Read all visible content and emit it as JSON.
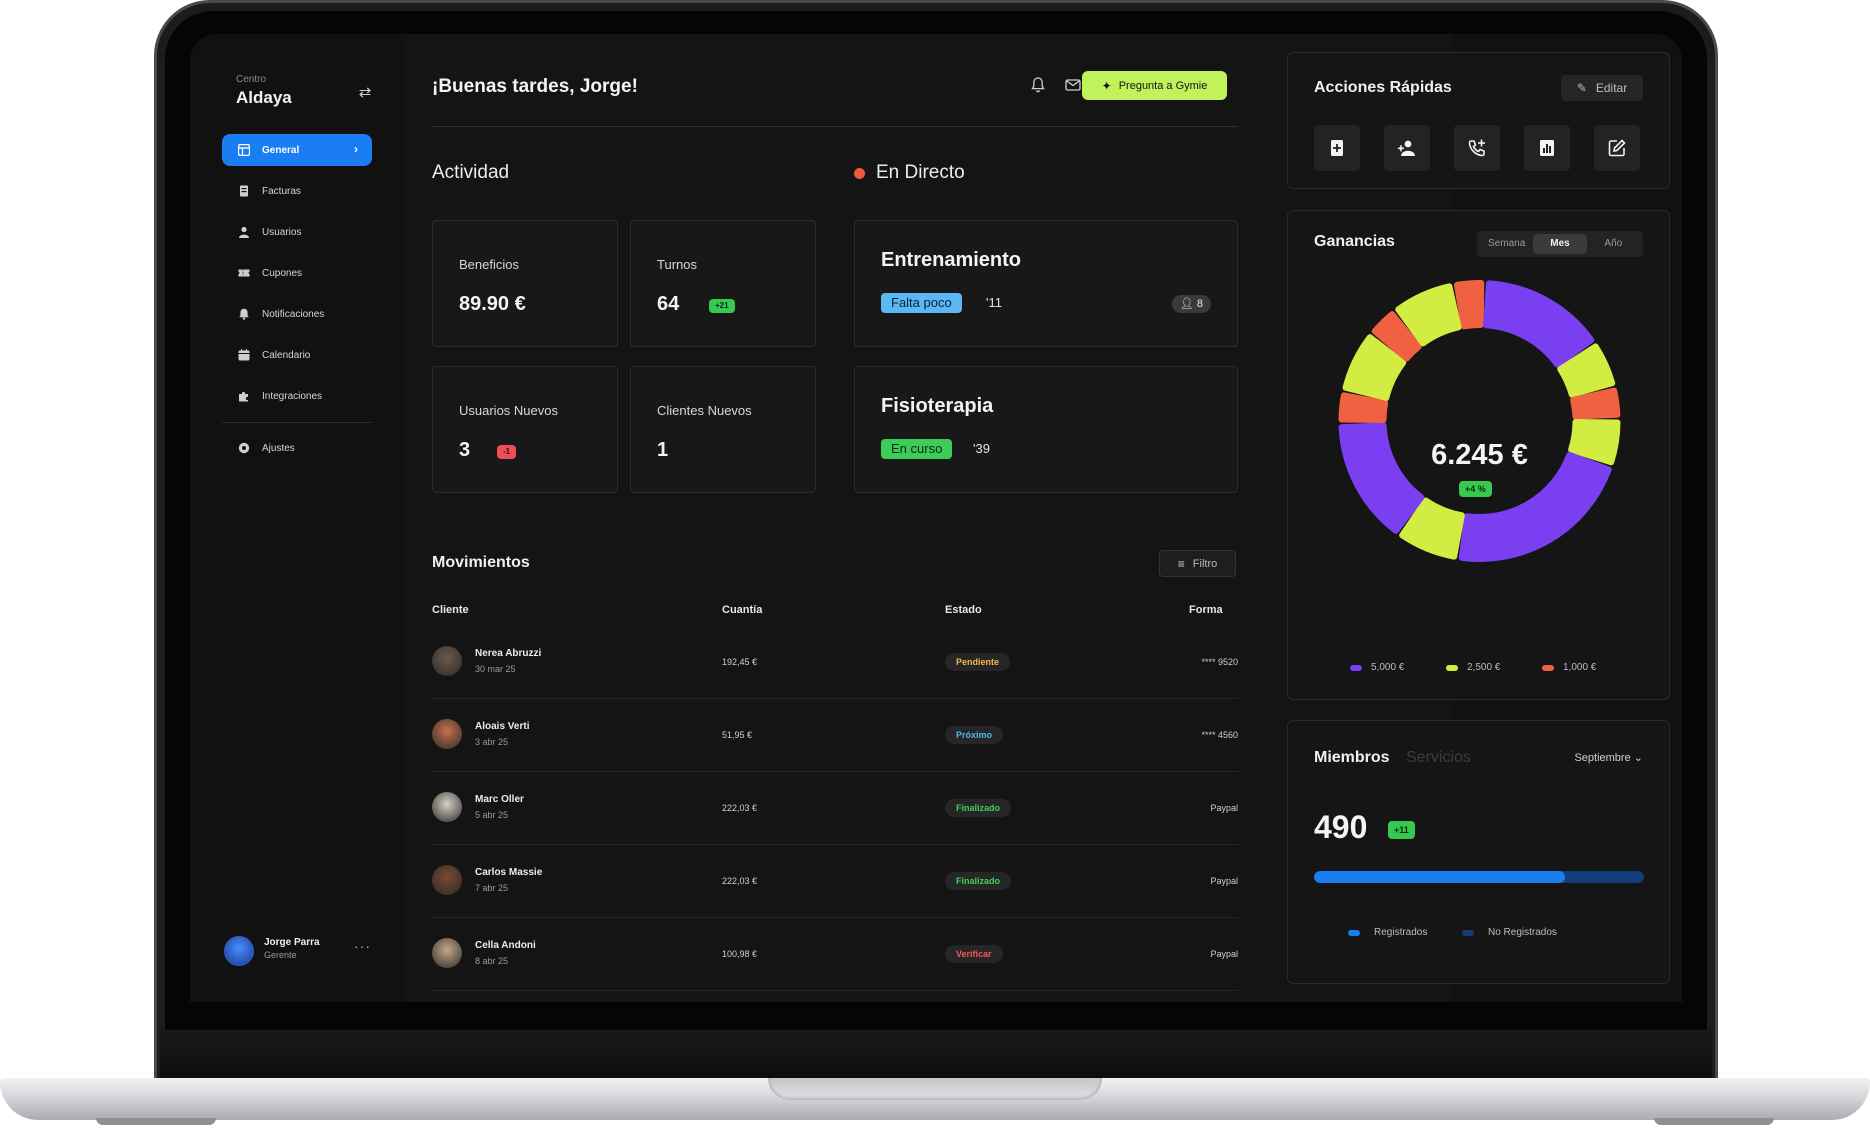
{
  "sidebar": {
    "centro_label": "Centro",
    "centro_name": "Aldaya",
    "items": [
      {
        "label": "General",
        "icon": "layout-icon",
        "active": true
      },
      {
        "label": "Facturas",
        "icon": "receipt-icon"
      },
      {
        "label": "Usuarios",
        "icon": "user-icon"
      },
      {
        "label": "Cupones",
        "icon": "ticket-icon"
      },
      {
        "label": "Notificaciones",
        "icon": "bell-icon"
      },
      {
        "label": "Calendario",
        "icon": "calendar-icon"
      },
      {
        "label": "Integraciones",
        "icon": "puzzle-icon"
      }
    ],
    "settings_label": "Ajustes",
    "user": {
      "name": "Jorge Parra",
      "role": "Gerente"
    }
  },
  "header": {
    "greeting": "¡Buenas tardes, Jorge!",
    "gymie_button": "Pregunta a Gymie"
  },
  "activity": {
    "title": "Actividad",
    "cards": [
      {
        "label": "Beneficios",
        "value": "89.90 €"
      },
      {
        "label": "Turnos",
        "value": "64",
        "badge": "+21"
      },
      {
        "label": "Usuarios Nuevos",
        "value": "3",
        "badge": "-1"
      },
      {
        "label": "Clientes Nuevos",
        "value": "1"
      }
    ]
  },
  "live": {
    "title": "En Directo",
    "sessions": [
      {
        "title": "Entrenamiento",
        "tag": "Falta poco",
        "time": "'11",
        "people": "8"
      },
      {
        "title": "Fisioterapia",
        "tag": "En curso",
        "time": "'39"
      }
    ]
  },
  "movements": {
    "title": "Movimientos",
    "filter_label": "Filtro",
    "columns": [
      "Cliente",
      "Cuantía",
      "Estado",
      "Forma"
    ],
    "rows": [
      {
        "name": "Nerea Abruzzi",
        "date": "30 mar 25",
        "amount": "192,45 €",
        "status": "Pendiente",
        "forma": "**** 9520"
      },
      {
        "name": "Aloais Verti",
        "date": "3 abr 25",
        "amount": "51,95 €",
        "status": "Próximo",
        "forma": "**** 4560"
      },
      {
        "name": "Marc Oller",
        "date": "5 abr 25",
        "amount": "222,03 €",
        "status": "Finalizado",
        "forma": "Paypal"
      },
      {
        "name": "Carlos Massie",
        "date": "7 abr 25",
        "amount": "222,03 €",
        "status": "Finalizado",
        "forma": "Paypal"
      },
      {
        "name": "Cella Andoni",
        "date": "8 abr 25",
        "amount": "100,98 €",
        "status": "Verificar",
        "forma": "Paypal"
      }
    ],
    "status_colors": {
      "Pendiente": "#f2b84b",
      "Próximo": "#4fb8e8",
      "Finalizado": "#3fcf5a",
      "Verificar": "#f0575c"
    }
  },
  "quick_actions": {
    "title": "Acciones Rápidas",
    "edit_label": "Editar",
    "icons": [
      "add-document-icon",
      "add-user-icon",
      "add-call-icon",
      "bar-chart-icon",
      "edit-square-icon"
    ]
  },
  "earnings": {
    "title": "Ganancias",
    "periods": [
      "Semana",
      "Mes",
      "Año"
    ],
    "active_period": "Mes",
    "total": "6.245 €",
    "delta": "+4 %",
    "legend": [
      {
        "label": "5,000 €",
        "color": "#7b3ff2"
      },
      {
        "label": "2,500 €",
        "color": "#d2ec42"
      },
      {
        "label": "1,000 €",
        "color": "#ef6140"
      }
    ]
  },
  "chart_data": {
    "type": "pie",
    "segments": [
      {
        "color": "#ef6140",
        "value": 1
      },
      {
        "color": "#7b3ff2",
        "value": 4
      },
      {
        "color": "#d2ec42",
        "value": 1.5
      },
      {
        "color": "#ef6140",
        "value": 1
      },
      {
        "color": "#d2ec42",
        "value": 1.5
      },
      {
        "color": "#7b3ff2",
        "value": 6
      },
      {
        "color": "#d2ec42",
        "value": 2
      },
      {
        "color": "#7b3ff2",
        "value": 4
      },
      {
        "color": "#ef6140",
        "value": 1
      },
      {
        "color": "#d2ec42",
        "value": 2
      },
      {
        "color": "#ef6140",
        "value": 1
      },
      {
        "color": "#d2ec42",
        "value": 2
      }
    ]
  },
  "members": {
    "tabs": [
      "Miembros",
      "Servicios"
    ],
    "month": "Septiembre",
    "count": "490",
    "delta": "+11",
    "registered_fraction": 0.76,
    "legend": [
      {
        "label": "Registrados",
        "color": "#1b7df2"
      },
      {
        "label": "No Registrados",
        "color": "#123c7a"
      }
    ]
  }
}
